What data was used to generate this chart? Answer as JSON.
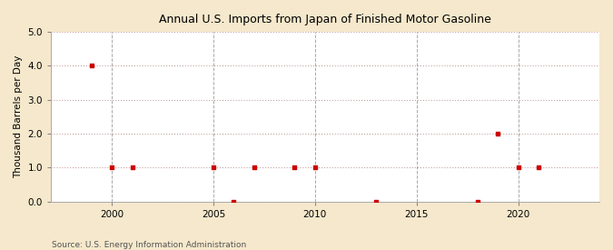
{
  "title": "Annual U.S. Imports from Japan of Finished Motor Gasoline",
  "ylabel": "Thousand Barrels per Day",
  "source": "Source: U.S. Energy Information Administration",
  "fig_background_color": "#f5e8cc",
  "plot_background_color": "#ffffff",
  "marker_color": "#cc0000",
  "hgrid_color": "#c8a0a0",
  "vgrid_color": "#aaaaaa",
  "xlim": [
    1997,
    2024
  ],
  "ylim": [
    0.0,
    5.0
  ],
  "yticks": [
    0.0,
    1.0,
    2.0,
    3.0,
    4.0,
    5.0
  ],
  "xticks": [
    2000,
    2005,
    2010,
    2015,
    2020
  ],
  "data_x": [
    1999,
    2000,
    2001,
    2005,
    2006,
    2007,
    2009,
    2010,
    2013,
    2018,
    2019,
    2020,
    2021
  ],
  "data_y": [
    4.0,
    1.0,
    1.0,
    1.0,
    0.0,
    1.0,
    1.0,
    1.0,
    0.0,
    0.0,
    2.0,
    1.0,
    1.0
  ]
}
